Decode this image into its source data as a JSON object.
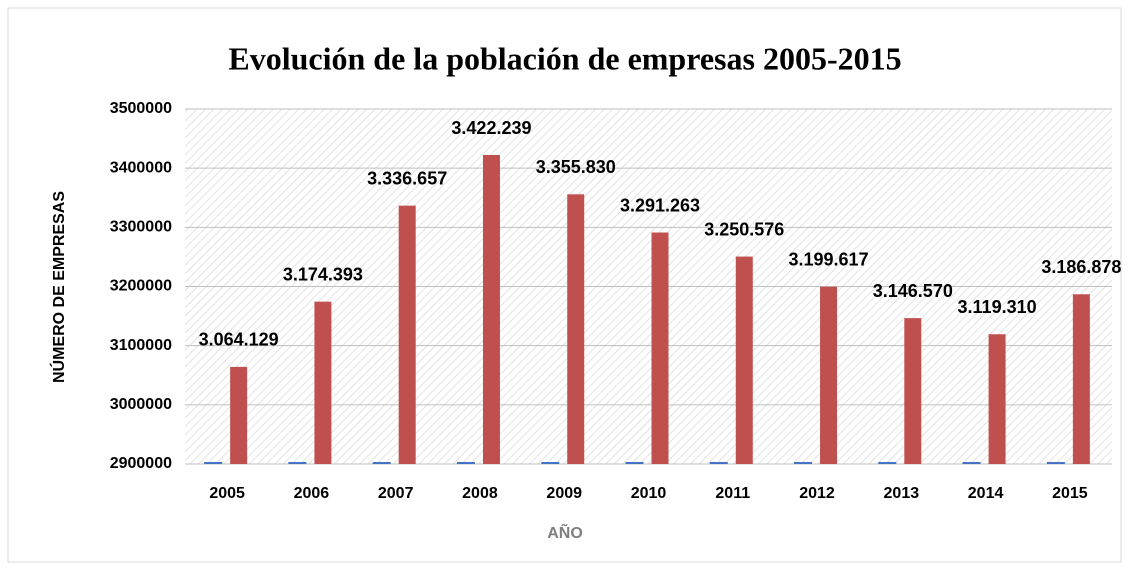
{
  "chart_data": {
    "type": "bar",
    "title": "Evolución de la población de empresas 2005-2015",
    "x_label": "AÑO",
    "y_label": "NÚMERO DE EMPRESAS",
    "categories": [
      "2005",
      "2006",
      "2007",
      "2008",
      "2009",
      "2010",
      "2011",
      "2012",
      "2013",
      "2014",
      "2015"
    ],
    "series": [
      {
        "color": "#4472c4",
        "values": [
          2005,
          2006,
          2007,
          2008,
          2009,
          2010,
          2011,
          2012,
          2013,
          2014,
          2015
        ]
      },
      {
        "color": "#c0504d",
        "values": [
          3064129,
          3174393,
          3336657,
          3422239,
          3355830,
          3291263,
          3250576,
          3199617,
          3146570,
          3119310,
          3186878
        ],
        "value_labels": [
          "3.064.129",
          "3.174.393",
          "3.336.657",
          "3.422.239",
          "3.355.830",
          "3.291.263",
          "3.250.576",
          "3.199.617",
          "3.146.570",
          "3.119.310",
          "3.186.878"
        ]
      }
    ],
    "ylim": [
      2900000,
      3500000
    ],
    "yticks": [
      2900000,
      3000000,
      3100000,
      3200000,
      3300000,
      3400000,
      3500000
    ],
    "grid": true
  }
}
